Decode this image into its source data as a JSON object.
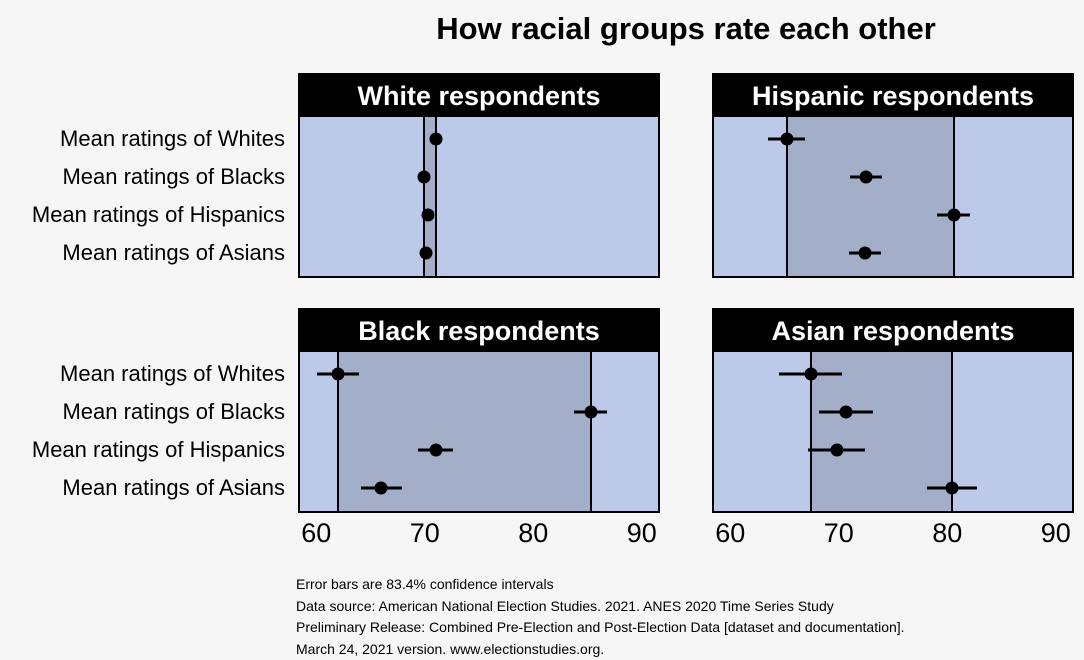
{
  "colors": {
    "background": "#f6f6f6",
    "panel_fill": "#bdc9e8",
    "band_fill": "#a3aec9",
    "header_bg": "#000000",
    "header_text": "#ffffff",
    "marker": "#000000"
  },
  "chart_data": {
    "type": "scatter",
    "title": "How racial groups rate each other",
    "categories": [
      "Mean ratings of Whites",
      "Mean ratings of Blacks",
      "Mean ratings of Hispanics",
      "Mean ratings of Asians"
    ],
    "xlim": [
      58.5,
      91.5
    ],
    "xticks": [
      60,
      70,
      80,
      90
    ],
    "legend": "none",
    "grid": "off",
    "panels": [
      {
        "title": "White respondents",
        "position": "top-left",
        "means": [
          71.0,
          69.9,
          70.3,
          70.1
        ],
        "ci_lo": [
          70.5,
          69.4,
          69.8,
          69.6
        ],
        "ci_hi": [
          71.5,
          70.4,
          70.8,
          70.6
        ],
        "band": [
          69.9,
          71.0
        ]
      },
      {
        "title": "Hispanic respondents",
        "position": "top-right",
        "means": [
          65.2,
          72.5,
          80.6,
          72.4
        ],
        "ci_lo": [
          63.5,
          71.0,
          79.1,
          70.9
        ],
        "ci_hi": [
          66.9,
          74.0,
          82.1,
          73.9
        ],
        "band": [
          65.2,
          80.6
        ]
      },
      {
        "title": "Black respondents",
        "position": "bottom-left",
        "means": [
          62.0,
          85.3,
          71.0,
          66.0
        ],
        "ci_lo": [
          60.1,
          83.8,
          69.4,
          64.1
        ],
        "ci_hi": [
          63.9,
          86.8,
          72.6,
          67.9
        ],
        "band": [
          62.0,
          85.3
        ]
      },
      {
        "title": "Asian respondents",
        "position": "bottom-right",
        "means": [
          67.4,
          70.7,
          69.8,
          80.4
        ],
        "ci_lo": [
          64.5,
          68.2,
          67.2,
          78.1
        ],
        "ci_hi": [
          70.3,
          73.2,
          72.4,
          82.7
        ],
        "band": [
          67.4,
          80.4
        ]
      }
    ],
    "notes": [
      "Error bars are 83.4% confidence intervals",
      "Data source: American National Election Studies. 2021. ANES 2020 Time Series Study",
      "Preliminary Release: Combined Pre-Election and Post-Election Data [dataset and documentation].",
      "March 24, 2021 version. www.electionstudies.org."
    ]
  }
}
